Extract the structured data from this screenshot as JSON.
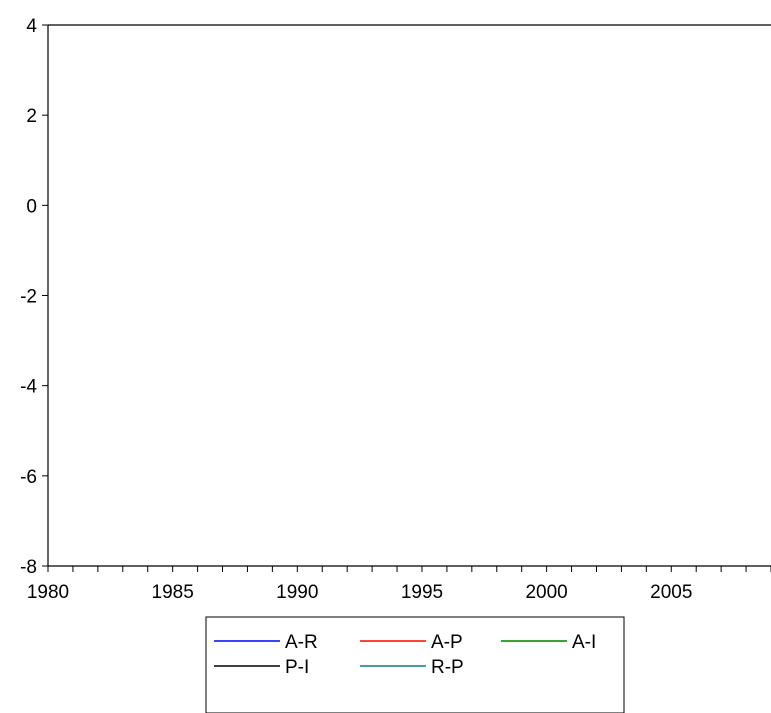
{
  "chart_data": {
    "type": "line",
    "title": "",
    "xlabel": "",
    "ylabel": "",
    "xlim": [
      1980,
      2009
    ],
    "ylim": [
      -8,
      4
    ],
    "x_ticks": [
      1980,
      1985,
      1990,
      1995,
      2000,
      2005
    ],
    "x_tick_labels": [
      "1980",
      "1985",
      "1990",
      "1995",
      "2000",
      "2005"
    ],
    "y_ticks": [
      4,
      2,
      0,
      -2,
      -4,
      -6,
      -8
    ],
    "y_tick_labels": [
      "4",
      "2",
      "0",
      "-2",
      "-4",
      "-6",
      "-8"
    ],
    "grid": false,
    "legend_position": "bottom-center",
    "series": [
      {
        "name": "A-R",
        "color": "#0000ff",
        "x": [],
        "y": []
      },
      {
        "name": "A-P",
        "color": "#ff0000",
        "x": [],
        "y": []
      },
      {
        "name": "A-I",
        "color": "#008000",
        "x": [],
        "y": []
      },
      {
        "name": "P-I",
        "color": "#000000",
        "x": [],
        "y": []
      },
      {
        "name": "R-P",
        "color": "#008080",
        "x": [],
        "y": []
      }
    ]
  }
}
